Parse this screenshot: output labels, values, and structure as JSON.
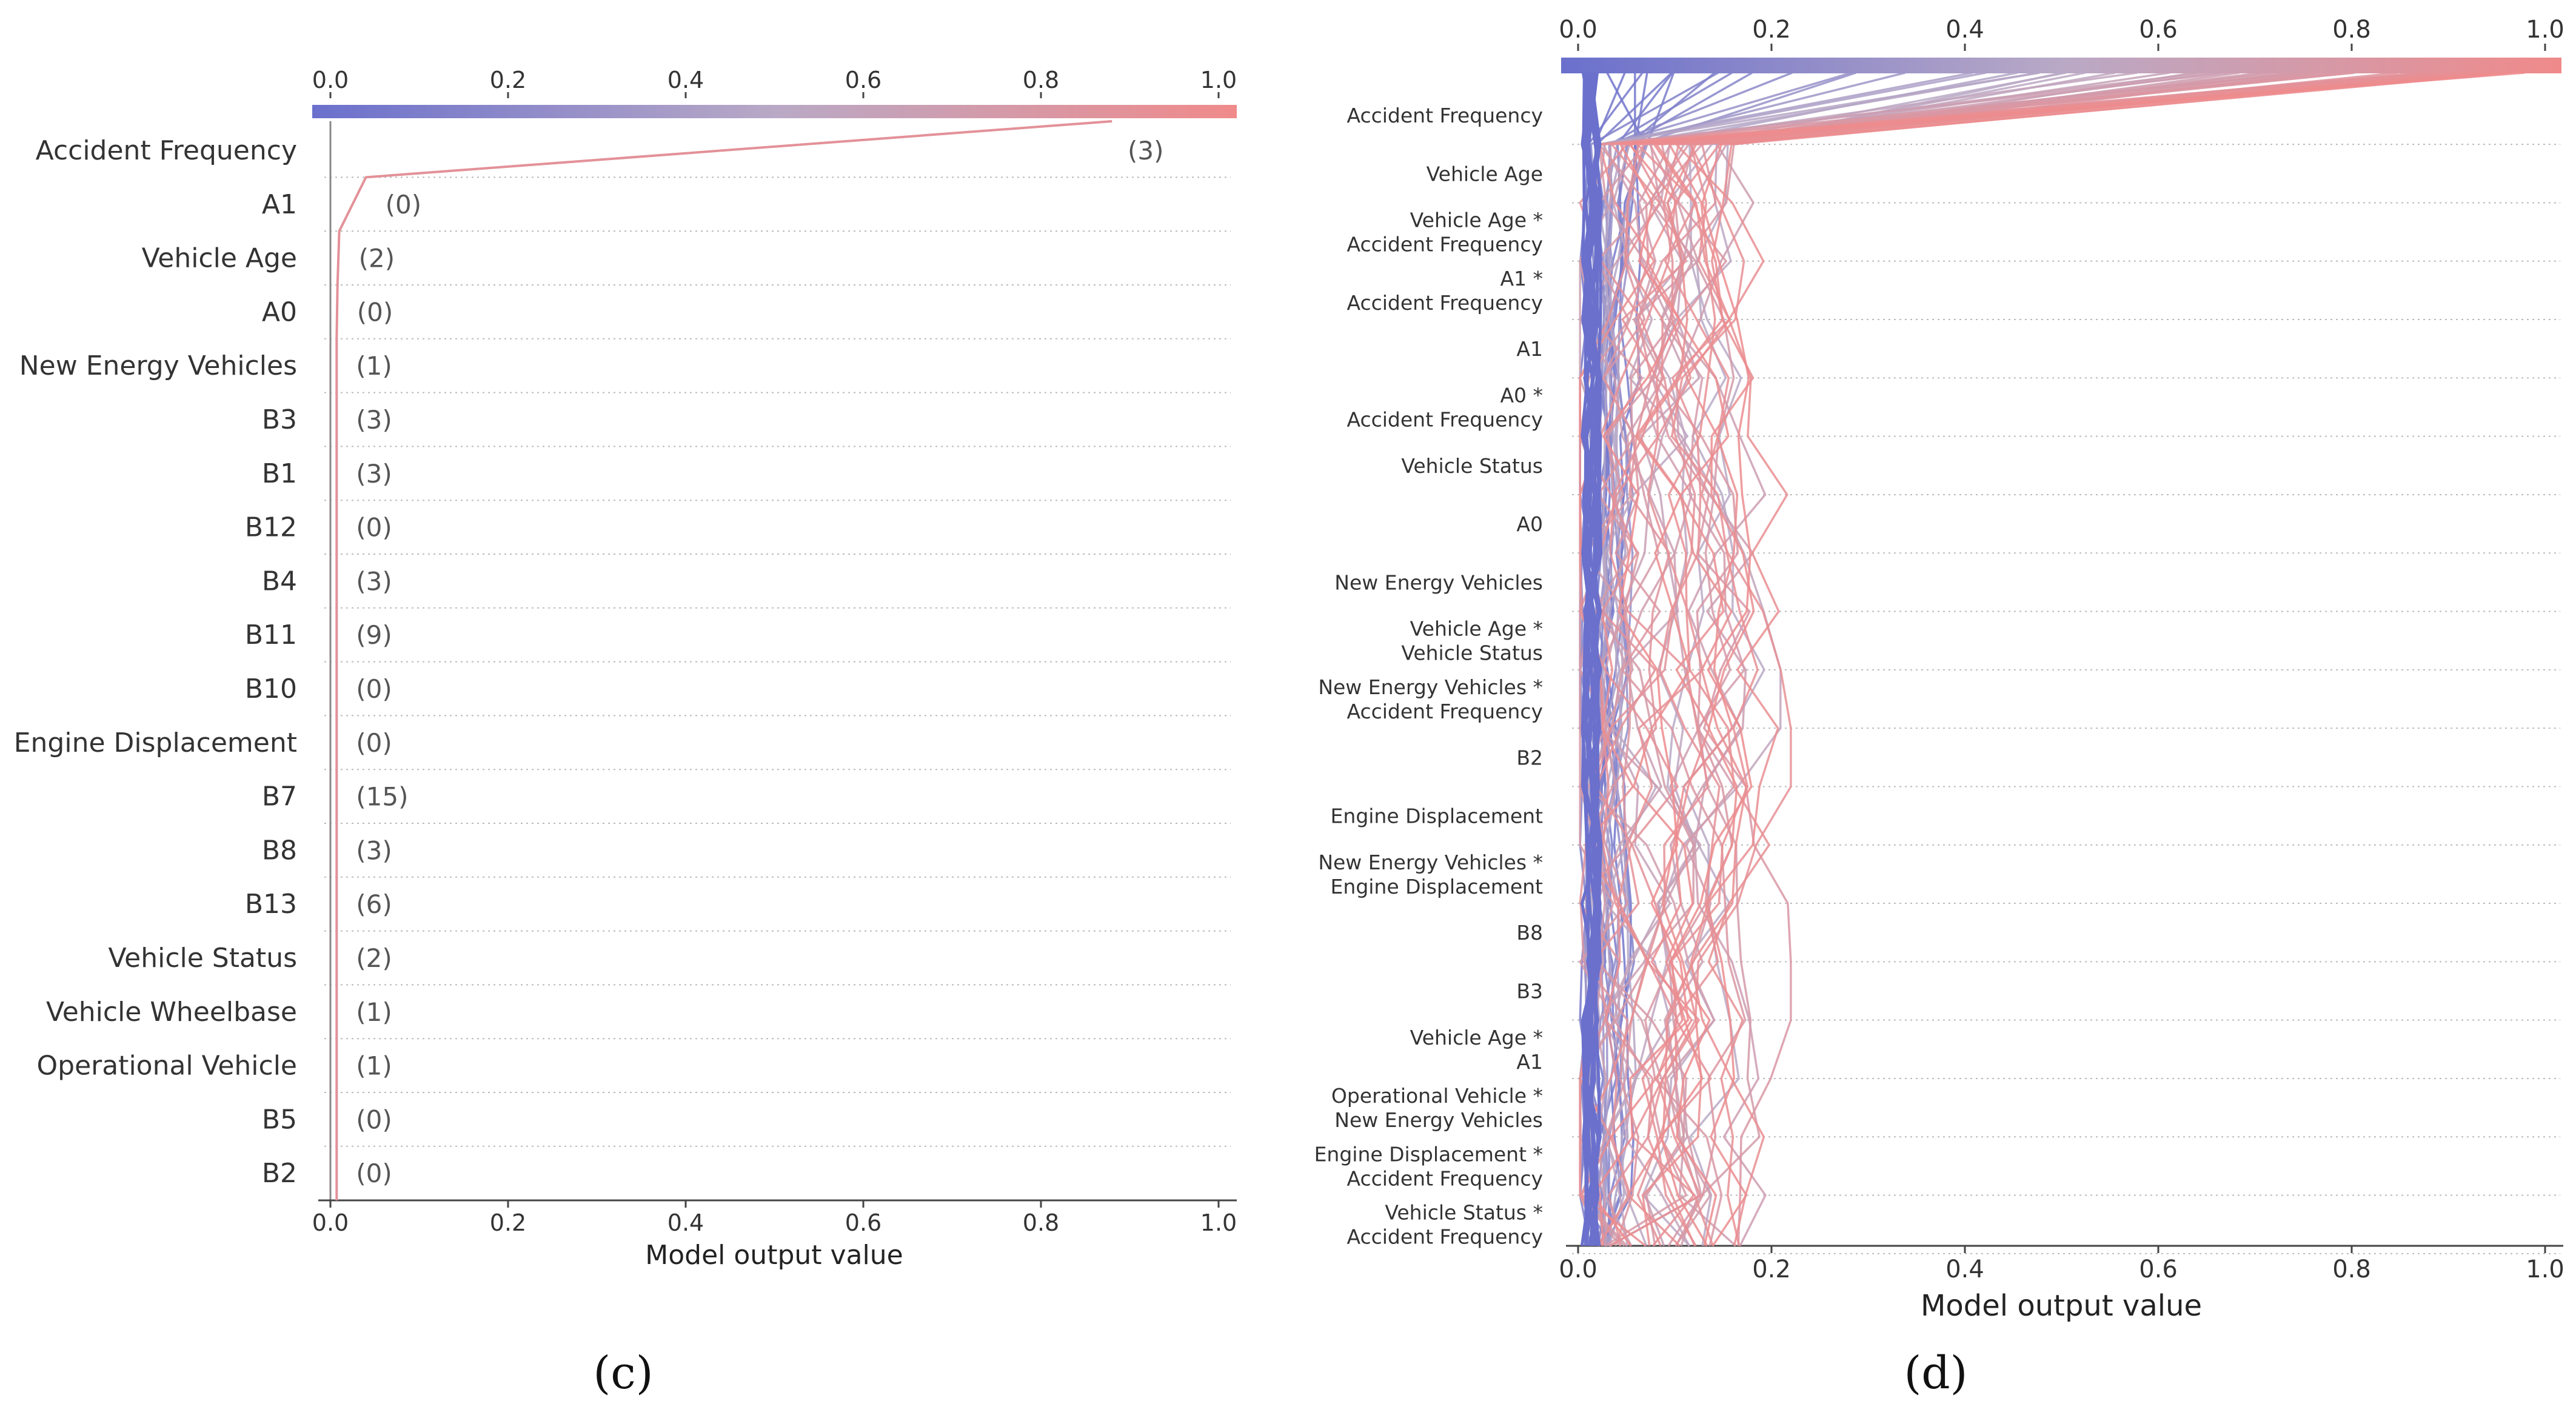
{
  "colors": {
    "low": "#6a70cc",
    "high": "#f08a8a",
    "axis": "#444444",
    "grid": "#bbbbbb",
    "text": "#333333",
    "annotation": "#555555"
  },
  "chart_data": [
    {
      "type": "line",
      "subtype": "shap-decision-plot-single",
      "panel_label": "(c)",
      "xlabel": "Model output value",
      "xlim": [
        0.0,
        1.0
      ],
      "xticks": [
        "0.0",
        "0.2",
        "0.4",
        "0.6",
        "0.8",
        "1.0"
      ],
      "colorbar_ticks": [
        "0.0",
        "0.2",
        "0.4",
        "0.6",
        "0.8",
        "1.0"
      ],
      "features": [
        "Accident Frequency",
        "A1",
        "Vehicle Age",
        "A0",
        "New Energy Vehicles",
        "B3",
        "B1",
        "B12",
        "B4",
        "B11",
        "B10",
        "Engine Displacement",
        "B7",
        "B8",
        "B13",
        "Vehicle Status",
        "Vehicle Wheelbase",
        "Operational Vehicle",
        "B5",
        "B2"
      ],
      "feature_values": [
        "(3)",
        "(0)",
        "(2)",
        "(0)",
        "(1)",
        "(3)",
        "(3)",
        "(0)",
        "(3)",
        "(9)",
        "(0)",
        "(0)",
        "(15)",
        "(3)",
        "(6)",
        "(2)",
        "(1)",
        "(1)",
        "(0)",
        "(0)"
      ],
      "series": [
        {
          "name": "sample",
          "values": [
            0.88,
            0.04,
            0.01,
            0.008,
            0.007,
            0.007,
            0.007,
            0.007,
            0.007,
            0.007,
            0.007,
            0.007,
            0.007,
            0.007,
            0.007,
            0.007,
            0.007,
            0.007,
            0.007,
            0.007,
            0.007
          ]
        }
      ]
    },
    {
      "type": "line",
      "subtype": "shap-decision-plot-multi",
      "panel_label": "(d)",
      "xlabel": "Model output value",
      "xlim": [
        0.0,
        1.0
      ],
      "xticks": [
        "0.0",
        "0.2",
        "0.4",
        "0.6",
        "0.8",
        "1.0"
      ],
      "colorbar_ticks": [
        "0.0",
        "0.2",
        "0.4",
        "0.6",
        "0.8",
        "1.0"
      ],
      "features": [
        [
          "Accident Frequency"
        ],
        [
          "Vehicle Age"
        ],
        [
          "Vehicle Age *",
          "Accident Frequency"
        ],
        [
          "A1 *",
          "Accident Frequency"
        ],
        [
          "A1"
        ],
        [
          "A0 *",
          "Accident Frequency"
        ],
        [
          "Vehicle Status"
        ],
        [
          "A0"
        ],
        [
          "New Energy Vehicles"
        ],
        [
          "Vehicle Age *",
          "Vehicle Status"
        ],
        [
          "New Energy Vehicles *",
          "Accident Frequency"
        ],
        [
          "B2"
        ],
        [
          "Engine Displacement"
        ],
        [
          "New Energy Vehicles *",
          "Engine Displacement"
        ],
        [
          "B8"
        ],
        [
          "B3"
        ],
        [
          "Vehicle Age *",
          "A1"
        ],
        [
          "Operational Vehicle *",
          "New Energy Vehicles"
        ],
        [
          "Engine Displacement *",
          "Accident Frequency"
        ],
        [
          "Vehicle Status *",
          "Accident Frequency"
        ]
      ],
      "series_description": "approx. 60 sample decision paths; values listed from top (full model output) down to base value, colored by final output"
    }
  ]
}
